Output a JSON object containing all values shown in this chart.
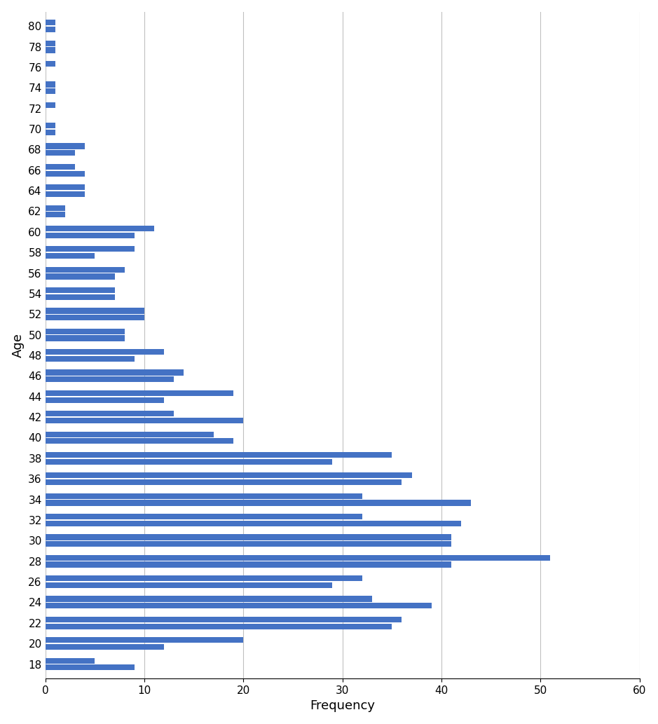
{
  "ages": [
    80,
    78,
    76,
    74,
    72,
    70,
    68,
    66,
    64,
    62,
    60,
    58,
    56,
    54,
    52,
    50,
    48,
    46,
    44,
    42,
    40,
    38,
    36,
    34,
    32,
    30,
    28,
    26,
    24,
    22,
    20,
    18
  ],
  "bar1": [
    1,
    1,
    1,
    1,
    1,
    1,
    4,
    3,
    4,
    2,
    11,
    9,
    8,
    7,
    10,
    8,
    12,
    14,
    19,
    13,
    17,
    35,
    37,
    32,
    32,
    41,
    51,
    32,
    33,
    36,
    20,
    5
  ],
  "bar2": [
    1,
    1,
    0,
    1,
    0,
    1,
    3,
    4,
    4,
    2,
    9,
    5,
    7,
    7,
    10,
    8,
    9,
    13,
    12,
    20,
    19,
    29,
    36,
    43,
    42,
    41,
    41,
    29,
    39,
    35,
    12,
    9
  ],
  "bar_color": "#4472C4",
  "xlabel": "Frequency",
  "ylabel": "Age",
  "xlim": [
    0,
    60
  ],
  "xticks": [
    0,
    10,
    20,
    30,
    40,
    50,
    60
  ],
  "background_color": "#ffffff",
  "grid_color": "#c0c0c0"
}
